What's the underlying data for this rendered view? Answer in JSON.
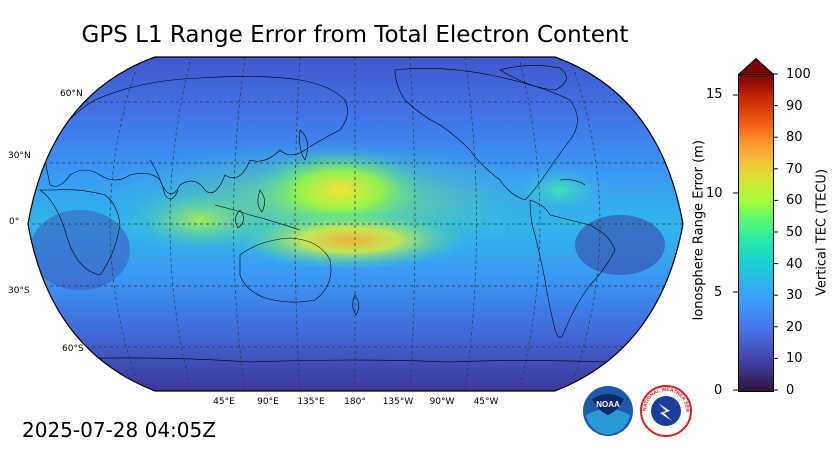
{
  "title": "GPS L1 Range Error from Total Electron Content",
  "timestamp": "2025-07-28 04:05Z",
  "map": {
    "projection": "robinson",
    "central_longitude": 180,
    "lat_labels": [
      "60°N",
      "30°N",
      "0°",
      "30°S",
      "60°S"
    ],
    "lon_labels": [
      "45°E",
      "90°E",
      "135°E",
      "180°",
      "135°W",
      "90°W",
      "45°W"
    ]
  },
  "colorbar": {
    "left_axis_label": "Ionosphere Range Error (m)",
    "right_axis_label": "Vertical TEC (TECU)",
    "left_ticks": [
      "0",
      "5",
      "10",
      "15"
    ],
    "right_ticks": [
      "0",
      "10",
      "20",
      "30",
      "40",
      "50",
      "60",
      "70",
      "80",
      "90",
      "100"
    ],
    "extend": "max",
    "colormap": "turbo"
  },
  "logos": {
    "noaa": "NOAA",
    "nws": "NATIONAL WEATHER SERVICE"
  }
}
